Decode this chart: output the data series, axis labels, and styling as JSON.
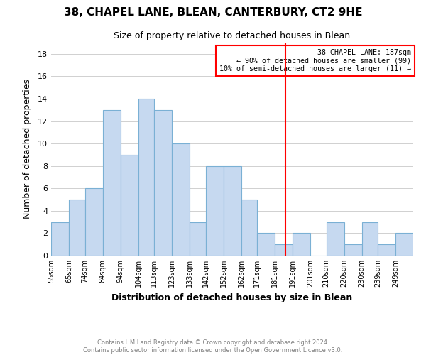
{
  "title": "38, CHAPEL LANE, BLEAN, CANTERBURY, CT2 9HE",
  "subtitle": "Size of property relative to detached houses in Blean",
  "xlabel": "Distribution of detached houses by size in Blean",
  "ylabel": "Number of detached properties",
  "footer_line1": "Contains HM Land Registry data © Crown copyright and database right 2024.",
  "footer_line2": "Contains public sector information licensed under the Open Government Licence v3.0.",
  "bin_labels": [
    "55sqm",
    "65sqm",
    "74sqm",
    "84sqm",
    "94sqm",
    "104sqm",
    "113sqm",
    "123sqm",
    "133sqm",
    "142sqm",
    "152sqm",
    "162sqm",
    "171sqm",
    "181sqm",
    "191sqm",
    "201sqm",
    "210sqm",
    "220sqm",
    "230sqm",
    "239sqm",
    "249sqm"
  ],
  "bin_edges": [
    55,
    65,
    74,
    84,
    94,
    104,
    113,
    123,
    133,
    142,
    152,
    162,
    171,
    181,
    191,
    201,
    210,
    220,
    230,
    239,
    249
  ],
  "counts": [
    3,
    5,
    6,
    13,
    9,
    14,
    13,
    10,
    3,
    8,
    8,
    5,
    2,
    1,
    2,
    0,
    3,
    1,
    3,
    1,
    2
  ],
  "bar_color": "#c6d9f0",
  "bar_edge_color": "#7ab0d4",
  "property_line_x": 187,
  "property_line_color": "red",
  "annotation_title": "38 CHAPEL LANE: 187sqm",
  "annotation_line1": "← 90% of detached houses are smaller (99)",
  "annotation_line2": "10% of semi-detached houses are larger (11) →",
  "annotation_box_color": "white",
  "annotation_box_edge_color": "red",
  "ylim": [
    0,
    19
  ],
  "yticks": [
    0,
    2,
    4,
    6,
    8,
    10,
    12,
    14,
    16,
    18
  ]
}
